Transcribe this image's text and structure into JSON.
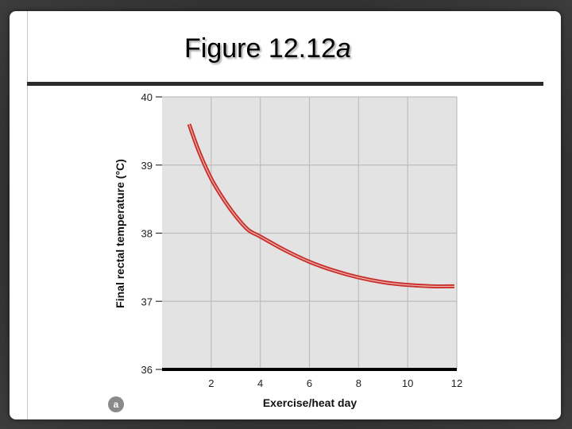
{
  "slide": {
    "title_main": "Figure 12.12",
    "title_suffix": "a"
  },
  "panel_badge": "a",
  "chart_data": {
    "type": "line",
    "xlabel": "Exercise/heat day",
    "ylabel": "Final rectal temperature (°C)",
    "xlim": [
      0,
      12
    ],
    "ylim": [
      36,
      40
    ],
    "xticks": [
      2,
      4,
      6,
      8,
      10,
      12
    ],
    "yticks": [
      36,
      37,
      38,
      39,
      40
    ],
    "grid": true,
    "series": [
      {
        "color": "#c8302c",
        "x": [
          1.1,
          1.5,
          2,
          2.5,
          3,
          3.5,
          4,
          5,
          6,
          7,
          8,
          9,
          10,
          11,
          11.9
        ],
        "y": [
          39.6,
          39.2,
          38.8,
          38.5,
          38.25,
          38.05,
          37.95,
          37.75,
          37.58,
          37.45,
          37.35,
          37.28,
          37.24,
          37.22,
          37.22
        ]
      }
    ]
  }
}
